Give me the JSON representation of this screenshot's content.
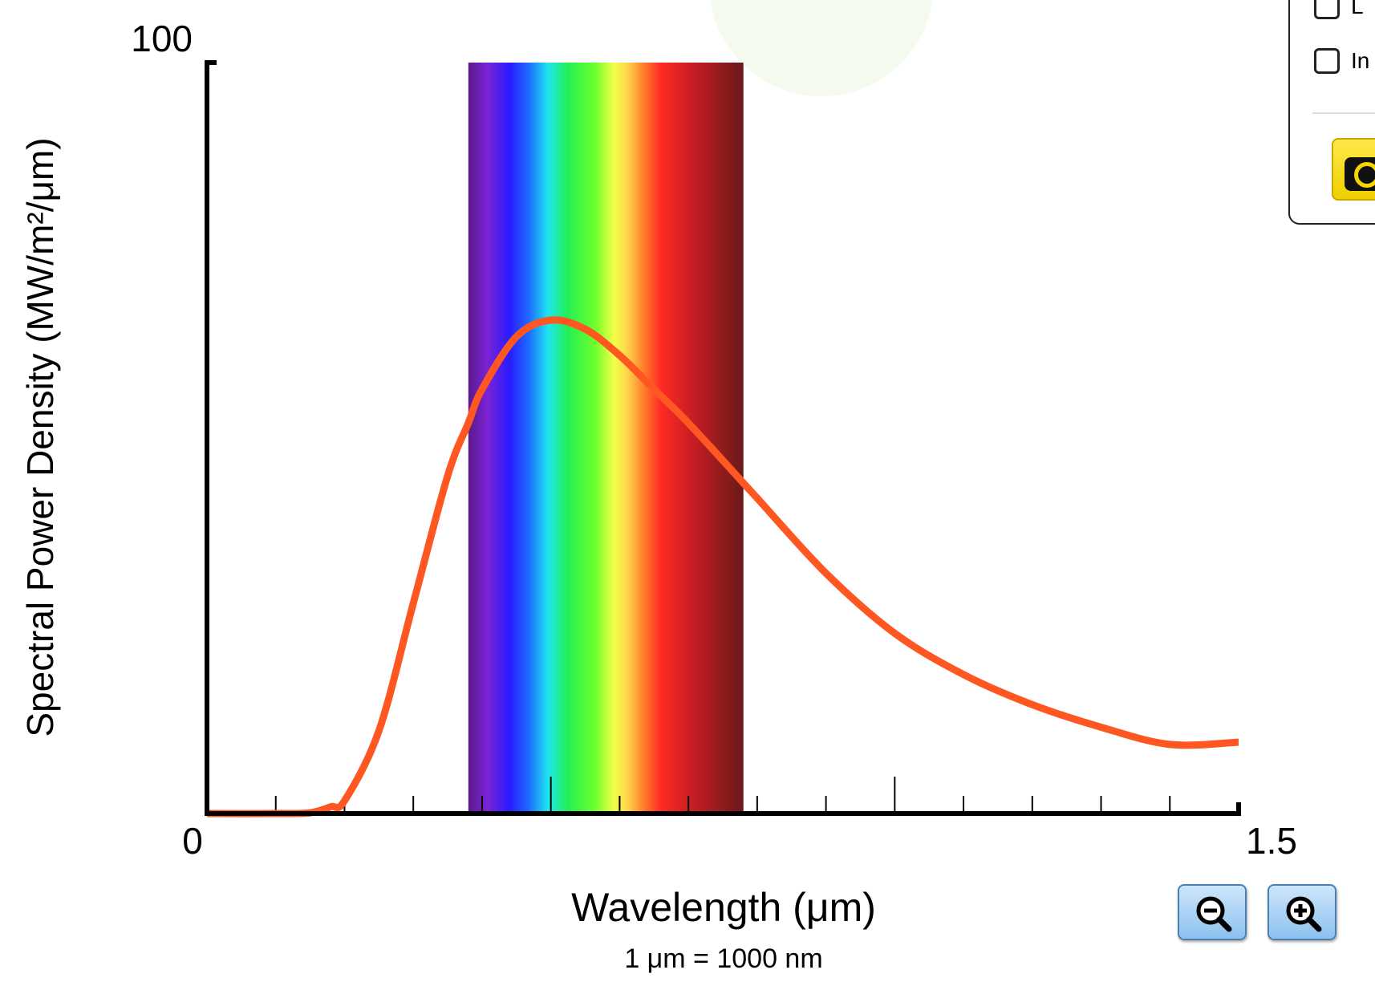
{
  "graph": {
    "y_axis_label": "Spectral Power Density (MW/m²/μm)",
    "x_axis_label": "Wavelength (μm)",
    "unit_note": "1 μm  =  1000 nm",
    "y_max_label": "100",
    "x_min_label": "0",
    "x_max_label": "1.5",
    "curve_color": "#ff5722"
  },
  "chart_data": {
    "type": "line",
    "xlabel": "Wavelength (μm)",
    "ylabel": "Spectral Power Density (MW/m²/μm)",
    "xlim": [
      0,
      1.5
    ],
    "ylim": [
      0,
      100
    ],
    "visible_band": [
      0.38,
      0.78
    ],
    "x_tick_step": 0.1,
    "series": [
      {
        "color": "#ff5722",
        "x": [
          0,
          0.1,
          0.15,
          0.18,
          0.2,
          0.25,
          0.3,
          0.35,
          0.38,
          0.4,
          0.45,
          0.5,
          0.55,
          0.6,
          0.65,
          0.7,
          0.78,
          0.8,
          0.9,
          1.0,
          1.1,
          1.2,
          1.3,
          1.4,
          1.5
        ],
        "y": [
          0,
          0,
          0.1,
          0.9,
          1.7,
          11,
          28,
          45,
          52,
          56.5,
          63.5,
          65.7,
          64.5,
          61,
          56.5,
          52,
          44,
          42,
          32,
          24,
          18.5,
          14.5,
          11.5,
          9.2,
          9.5
        ]
      }
    ]
  },
  "controls": {
    "checkbox_1_label": "L",
    "checkbox_2_label": "In"
  },
  "icons": {
    "camera": "camera-icon",
    "zoom_out": "zoom-out-icon",
    "zoom_in": "zoom-in-icon"
  }
}
